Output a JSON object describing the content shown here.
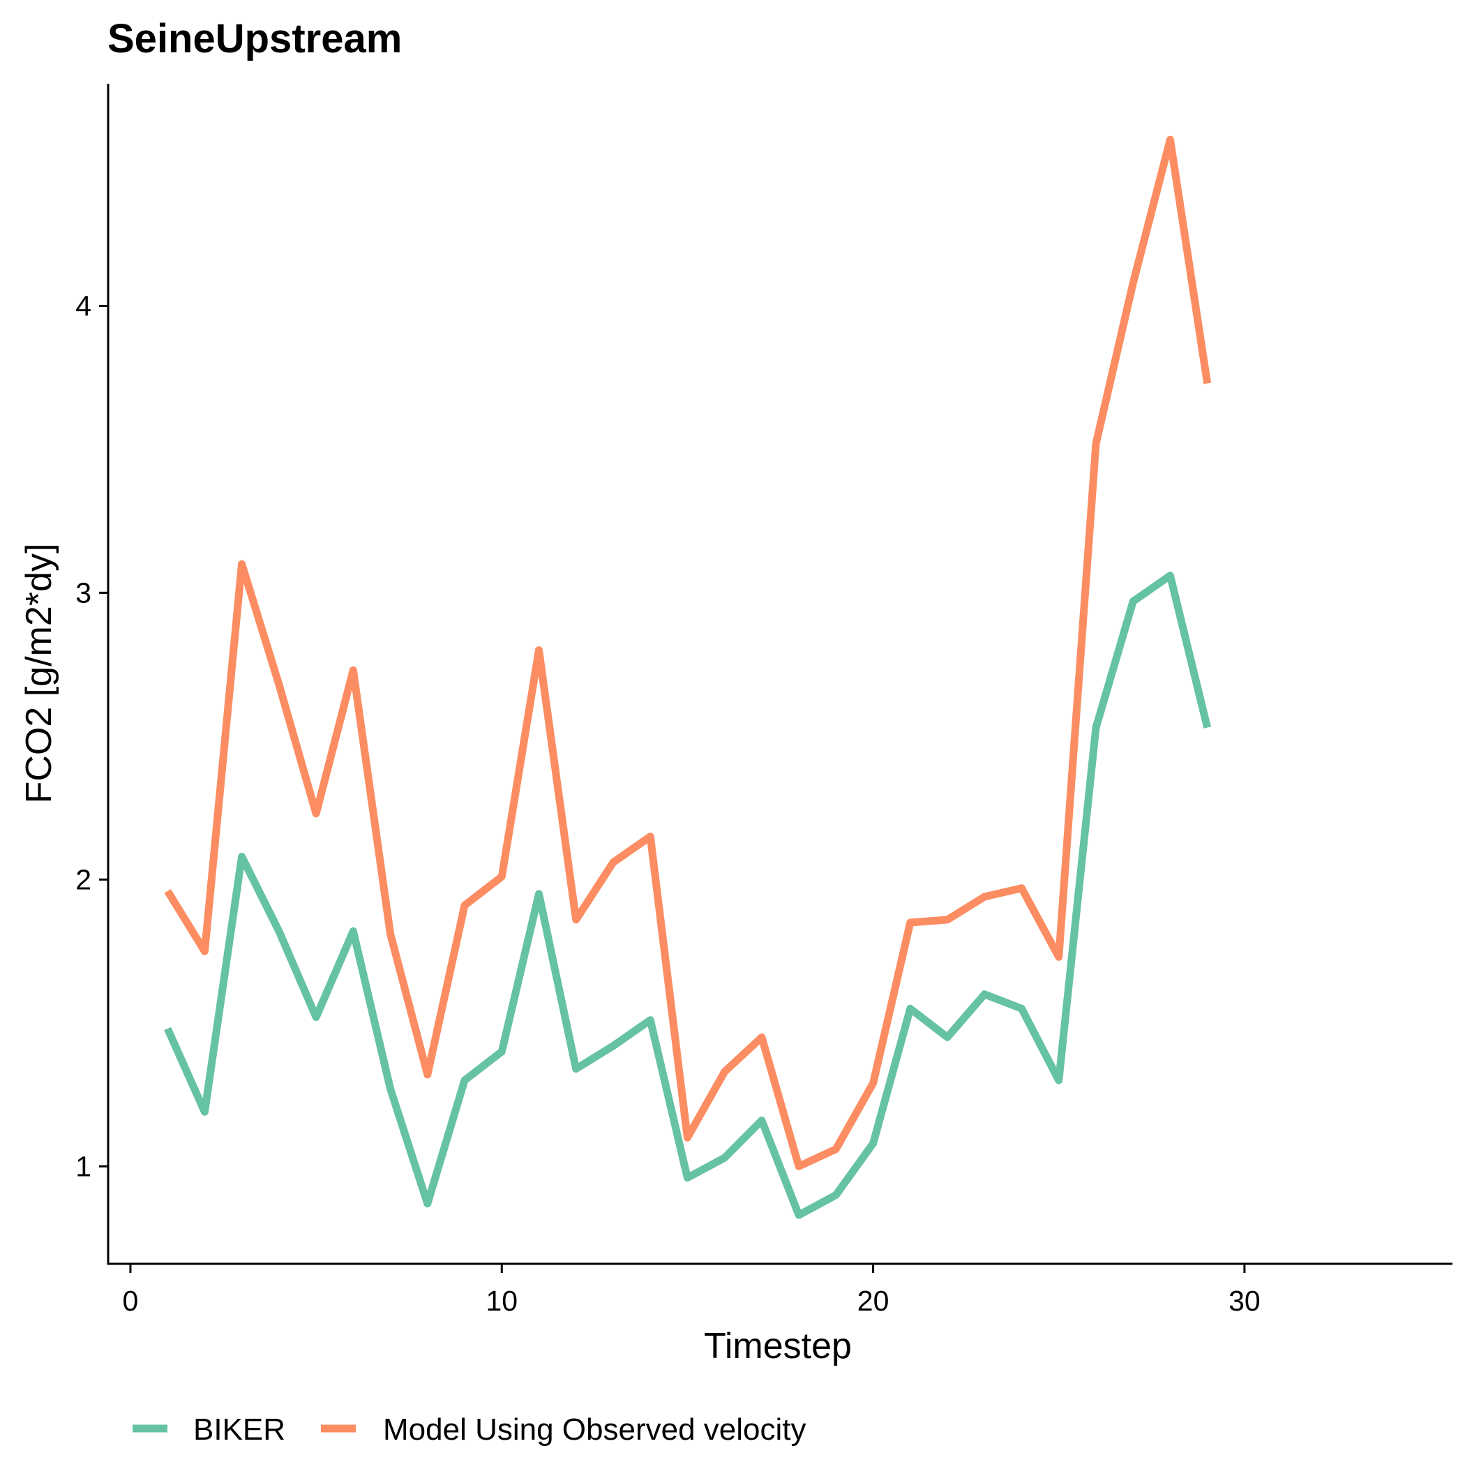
{
  "chart_data": {
    "type": "line",
    "title": "SeineUpstream",
    "xlabel": "Timestep",
    "ylabel": "FCO2 [g/m2*dy]",
    "xlim": [
      -0.6,
      35.6
    ],
    "ylim": [
      0.66,
      4.775
    ],
    "xticks": [
      0,
      10,
      20,
      30
    ],
    "yticks": [
      1,
      2,
      3,
      4
    ],
    "grid": false,
    "legend_position": "bottom",
    "x": [
      1,
      2,
      3,
      4,
      5,
      6,
      7,
      8,
      9,
      10,
      11,
      12,
      13,
      14,
      15,
      16,
      17,
      18,
      19,
      20,
      21,
      22,
      23,
      24,
      25,
      26,
      27,
      28,
      29
    ],
    "series": [
      {
        "name": "BIKER",
        "color": "#66C2A5",
        "values": [
          1.48,
          1.19,
          2.08,
          1.82,
          1.52,
          1.82,
          1.27,
          0.87,
          1.3,
          1.4,
          1.95,
          1.34,
          1.42,
          1.51,
          0.96,
          1.03,
          1.16,
          0.83,
          0.9,
          1.08,
          1.55,
          1.45,
          1.6,
          1.55,
          1.3,
          2.53,
          2.97,
          3.06,
          2.53
        ]
      },
      {
        "name": "Model Using Observed velocity",
        "color": "#FC8D62",
        "values": [
          1.96,
          1.75,
          3.1,
          2.68,
          2.23,
          2.73,
          1.81,
          1.32,
          1.91,
          2.01,
          2.8,
          1.86,
          2.06,
          2.15,
          1.1,
          1.33,
          1.45,
          1.0,
          1.06,
          1.29,
          1.85,
          1.86,
          1.94,
          1.97,
          1.73,
          3.52,
          4.08,
          4.58,
          3.73
        ]
      }
    ]
  }
}
